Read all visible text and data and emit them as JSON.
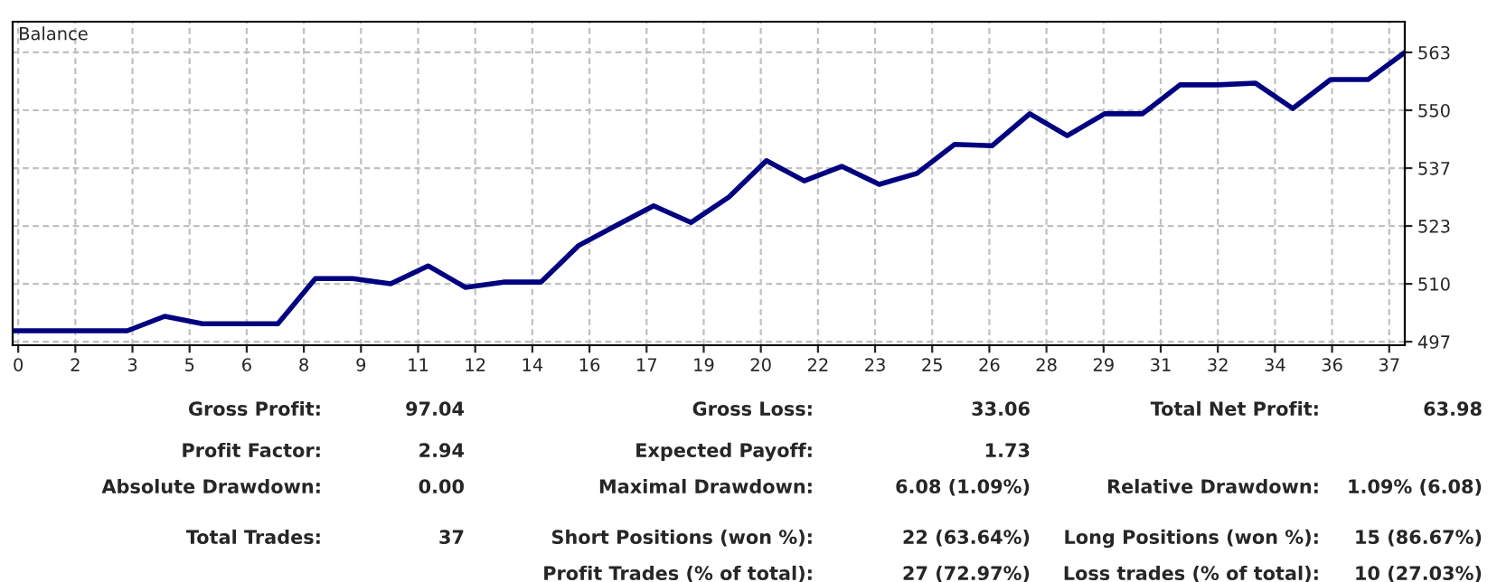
{
  "chart_data": {
    "type": "line",
    "title": "Balance",
    "x": [
      0.03,
      1.04,
      2.06,
      3.07,
      4.08,
      5.1,
      6.11,
      7.13,
      8.14,
      9.15,
      10.17,
      11.18,
      12.19,
      13.21,
      14.22,
      15.23,
      16.25,
      17.26,
      18.27,
      19.29,
      20.3,
      21.32,
      22.33,
      23.34,
      24.36,
      25.37,
      26.38,
      27.4,
      28.41,
      29.42,
      30.44,
      31.45,
      32.47,
      33.48,
      34.49,
      35.51,
      36.52,
      37.51
    ],
    "series": [
      {
        "color": "#000080",
        "values": [
          499.5,
          499.5,
          499.5,
          499.5,
          502.8,
          501.1,
          501.1,
          501.1,
          511.4,
          511.4,
          510.2,
          514.3,
          509.4,
          510.6,
          510.6,
          518.9,
          523.5,
          528.0,
          524.2,
          530.0,
          538.3,
          533.7,
          537.0,
          532.9,
          535.4,
          542.0,
          541.7,
          549.0,
          544.0,
          549.0,
          549.0,
          555.6,
          555.6,
          556.0,
          550.2,
          556.8,
          556.8,
          563.0
        ]
      }
    ],
    "xlim": [
      -0.02,
      37.51
    ],
    "xticks": [
      {
        "value": 0.13,
        "label": "0"
      },
      {
        "value": 1.67,
        "label": "2"
      },
      {
        "value": 3.21,
        "label": "3"
      },
      {
        "value": 4.75,
        "label": "5"
      },
      {
        "value": 6.29,
        "label": "6"
      },
      {
        "value": 7.83,
        "label": "8"
      },
      {
        "value": 9.37,
        "label": "9"
      },
      {
        "value": 10.91,
        "label": "11"
      },
      {
        "value": 12.45,
        "label": "12"
      },
      {
        "value": 13.99,
        "label": "14"
      },
      {
        "value": 15.53,
        "label": "16"
      },
      {
        "value": 17.07,
        "label": "17"
      },
      {
        "value": 18.61,
        "label": "19"
      },
      {
        "value": 20.15,
        "label": "20"
      },
      {
        "value": 21.69,
        "label": "22"
      },
      {
        "value": 23.23,
        "label": "23"
      },
      {
        "value": 24.77,
        "label": "25"
      },
      {
        "value": 26.31,
        "label": "26"
      },
      {
        "value": 27.85,
        "label": "28"
      },
      {
        "value": 29.39,
        "label": "29"
      },
      {
        "value": 30.93,
        "label": "31"
      },
      {
        "value": 32.47,
        "label": "32"
      },
      {
        "value": 34.01,
        "label": "34"
      },
      {
        "value": 35.55,
        "label": "36"
      },
      {
        "value": 37.09,
        "label": "37"
      }
    ],
    "ylim": [
      496.2,
      570.0
    ],
    "yticks": [
      {
        "value": 497,
        "label": "497"
      },
      {
        "value": 510.2,
        "label": "510"
      },
      {
        "value": 523.4,
        "label": "523"
      },
      {
        "value": 536.6,
        "label": "537"
      },
      {
        "value": 549.8,
        "label": "550"
      },
      {
        "value": 563,
        "label": "563"
      }
    ],
    "grid": true,
    "line_style": "solid",
    "marker": "none",
    "legend": false,
    "annotations": [
      "Gross Profit:",
      "97.04",
      "Gross Loss:",
      "33.06",
      "Total Net Profit:",
      "63.98",
      "Profit Factor:",
      "2.94",
      "Expected Payoff:",
      "1.73",
      "Absolute Drawdown:",
      "0.00",
      "Maximal Drawdown:",
      "6.08 (1.09%)",
      "Relative Drawdown:",
      "1.09% (6.08)",
      "Total Trades:",
      "37",
      "Short Positions (won %):",
      "22 (63.64%)",
      "Long Positions (won %):",
      "15 (86.67%)",
      "Profit Trades (% of total):",
      "27 (72.97%)",
      "Loss trades (% of total):",
      "10 (27.03%)"
    ]
  }
}
